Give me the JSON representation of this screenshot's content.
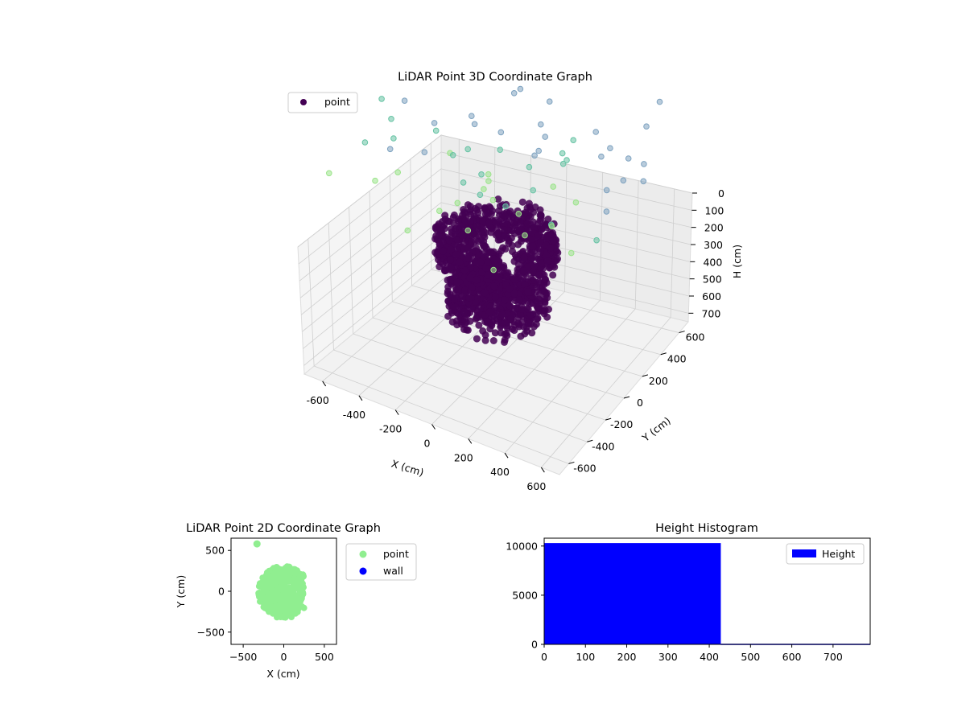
{
  "chart_data": [
    {
      "type": "scatter",
      "title": "LiDAR Point 3D Coordinate Graph",
      "xlabel": "X (cm)",
      "ylabel": "Y (cm)",
      "zlabel": "H (cm)",
      "x_ticks": [
        -600,
        -400,
        -200,
        0,
        200,
        400,
        600
      ],
      "y_ticks": [
        -600,
        -400,
        -200,
        0,
        200,
        400,
        600
      ],
      "z_ticks": [
        0,
        100,
        200,
        300,
        400,
        500,
        600,
        700
      ],
      "xlim": [
        -700,
        700
      ],
      "ylim": [
        -700,
        700
      ],
      "zlim": [
        750,
        0
      ],
      "legend": {
        "position": "top-left",
        "entries": [
          "point"
        ]
      },
      "colors": {
        "cluster": "#440154",
        "outlier_far": "#7fa3c0",
        "outlier_mid": "#67c3a4",
        "outlier_near": "#9be48a"
      },
      "series": [
        {
          "name": "point",
          "cluster": {
            "upper_ring": {
              "center": [
                0,
                0
              ],
              "radius": 300,
              "h": [
                0,
                200
              ]
            },
            "lower_body": {
              "center": [
                0,
                0
              ],
              "radius": 250,
              "h": [
                250,
                500
              ]
            }
          }
        }
      ]
    },
    {
      "type": "scatter",
      "title": "LiDAR Point 2D Coordinate Graph",
      "xlabel": "X (cm)",
      "ylabel": "Y (cm)",
      "x_ticks": [
        -500,
        0,
        500
      ],
      "y_ticks": [
        -500,
        0,
        500
      ],
      "xlim": [
        -650,
        650
      ],
      "ylim": [
        -650,
        650
      ],
      "legend": {
        "position": "outside-right",
        "entries": [
          "point",
          "wall"
        ]
      },
      "colors": {
        "point": "#90ee90",
        "wall": "#0000ff"
      },
      "series": [
        {
          "name": "point",
          "outlier": [
            -330,
            580
          ],
          "blob": {
            "center": [
              0,
              -10
            ],
            "radius": 320
          }
        },
        {
          "name": "wall",
          "points": []
        }
      ]
    },
    {
      "type": "bar",
      "title": "Height Histogram",
      "x_ticks": [
        0,
        100,
        200,
        300,
        400,
        500,
        600,
        700
      ],
      "y_ticks": [
        0,
        5000,
        10000
      ],
      "xlim": [
        0,
        790
      ],
      "ylim": [
        0,
        10800
      ],
      "legend": {
        "position": "top-right",
        "entries": [
          "Height"
        ]
      },
      "colors": {
        "bar": "#0000ff"
      },
      "series": [
        {
          "name": "Height",
          "bins": [
            [
              0,
              428,
              10300
            ],
            [
              428,
              790,
              60
            ]
          ]
        }
      ]
    }
  ]
}
